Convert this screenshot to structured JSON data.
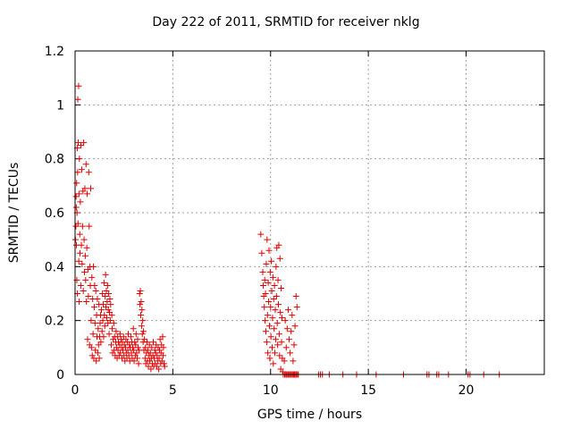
{
  "chart_data": {
    "type": "scatter",
    "title": "Day 222 of 2011, SRMTID for receiver nklg",
    "xlabel": "GPS time / hours",
    "ylabel": "SRMTID / TECUs",
    "xlim": [
      0,
      24
    ],
    "ylim": [
      0,
      1.2
    ],
    "x_ticks": [
      0,
      5,
      10,
      15,
      20
    ],
    "x_tick_labels": [
      "0",
      "5",
      "10",
      "15",
      "20"
    ],
    "y_ticks": [
      0,
      0.2,
      0.4,
      0.6,
      0.8,
      1.0,
      1.2
    ],
    "y_tick_labels": [
      "0",
      "0.2",
      "0.4",
      "0.6",
      "0.8",
      "1",
      "1.2"
    ],
    "grid": true,
    "legend": "none",
    "marker": "plus",
    "color": "#e00000",
    "series": [
      {
        "points": [
          [
            0.02,
            0.5
          ],
          [
            0.04,
            0.55
          ],
          [
            0.05,
            0.66
          ],
          [
            0.06,
            0.62
          ],
          [
            0.07,
            0.48
          ],
          [
            0.08,
            0.71
          ],
          [
            0.09,
            0.35
          ],
          [
            0.1,
            0.6
          ],
          [
            0.11,
            0.84
          ],
          [
            0.12,
            0.3
          ],
          [
            0.13,
            0.75
          ],
          [
            0.14,
            1.02
          ],
          [
            0.15,
            0.56
          ],
          [
            0.16,
            0.86
          ],
          [
            0.18,
            1.07
          ],
          [
            0.19,
            0.42
          ],
          [
            0.2,
            0.67
          ],
          [
            0.21,
            0.27
          ],
          [
            0.22,
            0.8
          ],
          [
            0.24,
            0.52
          ],
          [
            0.25,
            0.45
          ],
          [
            0.27,
            0.64
          ],
          [
            0.29,
            0.33
          ],
          [
            0.3,
            0.85
          ],
          [
            0.32,
            0.48
          ],
          [
            0.34,
            0.76
          ],
          [
            0.36,
            0.41
          ],
          [
            0.38,
            0.55
          ],
          [
            0.4,
            0.68
          ],
          [
            0.42,
            0.31
          ],
          [
            0.44,
            0.86
          ],
          [
            0.46,
            0.5
          ],
          [
            0.48,
            0.38
          ],
          [
            0.5,
            0.69
          ],
          [
            0.52,
            0.44
          ],
          [
            0.54,
            0.35
          ],
          [
            0.56,
            0.78
          ],
          [
            0.58,
            0.27
          ],
          [
            0.6,
            0.47
          ],
          [
            0.62,
            0.67
          ],
          [
            0.64,
            0.13
          ],
          [
            0.66,
            0.39
          ],
          [
            0.68,
            0.29
          ],
          [
            0.7,
            0.75
          ],
          [
            0.72,
            0.55
          ],
          [
            0.74,
            0.11
          ],
          [
            0.76,
            0.4
          ],
          [
            0.78,
            0.33
          ],
          [
            0.8,
            0.69
          ],
          [
            0.82,
            0.2
          ],
          [
            0.84,
            0.1
          ],
          [
            0.86,
            0.36
          ],
          [
            0.88,
            0.07
          ],
          [
            0.9,
            0.28
          ],
          [
            0.92,
            0.15
          ],
          [
            0.94,
            0.4
          ],
          [
            0.96,
            0.06
          ],
          [
            0.98,
            0.25
          ],
          [
            1.0,
            0.33
          ],
          [
            1.02,
            0.19
          ],
          [
            1.04,
            0.09
          ],
          [
            1.06,
            0.31
          ],
          [
            1.08,
            0.05
          ],
          [
            1.1,
            0.22
          ],
          [
            1.12,
            0.14
          ],
          [
            1.14,
            0.28
          ],
          [
            1.16,
            0.08
          ],
          [
            1.18,
            0.17
          ],
          [
            1.2,
            0.11
          ],
          [
            1.22,
            0.26
          ],
          [
            1.24,
            0.06
          ],
          [
            1.26,
            0.14
          ],
          [
            1.28,
            0.19
          ],
          [
            1.3,
            0.22
          ],
          [
            1.32,
            0.12
          ],
          [
            1.35,
            0.24
          ],
          [
            1.38,
            0.16
          ],
          [
            1.4,
            0.3
          ],
          [
            1.42,
            0.2
          ],
          [
            1.44,
            0.26
          ],
          [
            1.46,
            0.14
          ],
          [
            1.48,
            0.34
          ],
          [
            1.5,
            0.22
          ],
          [
            1.52,
            0.18
          ],
          [
            1.54,
            0.29
          ],
          [
            1.56,
            0.37
          ],
          [
            1.58,
            0.25
          ],
          [
            1.6,
            0.31
          ],
          [
            1.62,
            0.21
          ],
          [
            1.64,
            0.27
          ],
          [
            1.66,
            0.33
          ],
          [
            1.68,
            0.19
          ],
          [
            1.7,
            0.24
          ],
          [
            1.72,
            0.3
          ],
          [
            1.74,
            0.15
          ],
          [
            1.76,
            0.23
          ],
          [
            1.78,
            0.28
          ],
          [
            1.8,
            0.2
          ],
          [
            1.82,
            0.26
          ],
          [
            1.85,
            0.11
          ],
          [
            1.88,
            0.22
          ],
          [
            1.9,
            0.17
          ],
          [
            1.92,
            0.08
          ],
          [
            1.95,
            0.13
          ],
          [
            1.98,
            0.19
          ],
          [
            2.0,
            0.09
          ],
          [
            2.02,
            0.14
          ],
          [
            2.05,
            0.07
          ],
          [
            2.08,
            0.12
          ],
          [
            2.1,
            0.16
          ],
          [
            2.12,
            0.1
          ],
          [
            2.15,
            0.06
          ],
          [
            2.18,
            0.14
          ],
          [
            2.2,
            0.09
          ],
          [
            2.22,
            0.12
          ],
          [
            2.25,
            0.07
          ],
          [
            2.28,
            0.11
          ],
          [
            2.3,
            0.15
          ],
          [
            2.32,
            0.08
          ],
          [
            2.35,
            0.13
          ],
          [
            2.38,
            0.1
          ],
          [
            2.4,
            0.06
          ],
          [
            2.42,
            0.12
          ],
          [
            2.45,
            0.09
          ],
          [
            2.48,
            0.14
          ],
          [
            2.5,
            0.07
          ],
          [
            2.52,
            0.11
          ],
          [
            2.55,
            0.05
          ],
          [
            2.58,
            0.1
          ],
          [
            2.6,
            0.13
          ],
          [
            2.62,
            0.08
          ],
          [
            2.65,
            0.06
          ],
          [
            2.68,
            0.12
          ],
          [
            2.7,
            0.09
          ],
          [
            2.72,
            0.15
          ],
          [
            2.75,
            0.07
          ],
          [
            2.78,
            0.11
          ],
          [
            2.8,
            0.05
          ],
          [
            2.82,
            0.1
          ],
          [
            2.85,
            0.14
          ],
          [
            2.88,
            0.08
          ],
          [
            2.9,
            0.12
          ],
          [
            2.92,
            0.06
          ],
          [
            2.95,
            0.1
          ],
          [
            2.98,
            0.17
          ],
          [
            3.0,
            0.09
          ],
          [
            3.02,
            0.05
          ],
          [
            3.05,
            0.12
          ],
          [
            3.08,
            0.07
          ],
          [
            3.1,
            0.11
          ],
          [
            3.12,
            0.15
          ],
          [
            3.15,
            0.08
          ],
          [
            3.18,
            0.06
          ],
          [
            3.2,
            0.13
          ],
          [
            3.22,
            0.1
          ],
          [
            3.25,
            0.04
          ],
          [
            3.28,
            0.09
          ],
          [
            3.3,
            0.3
          ],
          [
            3.32,
            0.26
          ],
          [
            3.34,
            0.31
          ],
          [
            3.36,
            0.22
          ],
          [
            3.38,
            0.27
          ],
          [
            3.4,
            0.18
          ],
          [
            3.42,
            0.24
          ],
          [
            3.44,
            0.15
          ],
          [
            3.46,
            0.2
          ],
          [
            3.48,
            0.12
          ],
          [
            3.5,
            0.16
          ],
          [
            3.52,
            0.09
          ],
          [
            3.55,
            0.13
          ],
          [
            3.58,
            0.06
          ],
          [
            3.6,
            0.1
          ],
          [
            3.62,
            0.04
          ],
          [
            3.65,
            0.08
          ],
          [
            3.68,
            0.12
          ],
          [
            3.7,
            0.05
          ],
          [
            3.72,
            0.09
          ],
          [
            3.75,
            0.03
          ],
          [
            3.78,
            0.07
          ],
          [
            3.8,
            0.11
          ],
          [
            3.82,
            0.05
          ],
          [
            3.85,
            0.08
          ],
          [
            3.88,
            0.02
          ],
          [
            3.9,
            0.06
          ],
          [
            3.92,
            0.1
          ],
          [
            3.95,
            0.04
          ],
          [
            3.98,
            0.07
          ],
          [
            4.0,
            0.12
          ],
          [
            4.02,
            0.03
          ],
          [
            4.05,
            0.06
          ],
          [
            4.08,
            0.09
          ],
          [
            4.1,
            0.04
          ],
          [
            4.12,
            0.08
          ],
          [
            4.15,
            0.11
          ],
          [
            4.18,
            0.03
          ],
          [
            4.2,
            0.07
          ],
          [
            4.22,
            0.05
          ],
          [
            4.25,
            0.1
          ],
          [
            4.28,
            0.02
          ],
          [
            4.3,
            0.06
          ],
          [
            4.32,
            0.09
          ],
          [
            4.35,
            0.13
          ],
          [
            4.38,
            0.04
          ],
          [
            4.4,
            0.08
          ],
          [
            4.42,
            0.11
          ],
          [
            4.45,
            0.05
          ],
          [
            4.48,
            0.14
          ],
          [
            4.5,
            0.07
          ],
          [
            4.52,
            0.1
          ],
          [
            4.55,
            0.04
          ],
          [
            4.58,
            0.03
          ],
          [
            9.5,
            0.52
          ],
          [
            9.55,
            0.45
          ],
          [
            9.6,
            0.38
          ],
          [
            9.62,
            0.33
          ],
          [
            9.65,
            0.29
          ],
          [
            9.68,
            0.25
          ],
          [
            9.7,
            0.35
          ],
          [
            9.72,
            0.2
          ],
          [
            9.74,
            0.3
          ],
          [
            9.76,
            0.16
          ],
          [
            9.78,
            0.41
          ],
          [
            9.8,
            0.12
          ],
          [
            9.82,
            0.5
          ],
          [
            9.84,
            0.22
          ],
          [
            9.86,
            0.08
          ],
          [
            9.88,
            0.34
          ],
          [
            9.9,
            0.27
          ],
          [
            9.92,
            0.46
          ],
          [
            9.94,
            0.18
          ],
          [
            9.96,
            0.06
          ],
          [
            9.98,
            0.38
          ],
          [
            10.0,
            0.25
          ],
          [
            10.02,
            0.14
          ],
          [
            10.04,
            0.42
          ],
          [
            10.06,
            0.31
          ],
          [
            10.08,
            0.1
          ],
          [
            10.1,
            0.21
          ],
          [
            10.12,
            0.36
          ],
          [
            10.14,
            0.04
          ],
          [
            10.16,
            0.28
          ],
          [
            10.18,
            0.17
          ],
          [
            10.2,
            0.33
          ],
          [
            10.22,
            0.08
          ],
          [
            10.24,
            0.24
          ],
          [
            10.26,
            0.13
          ],
          [
            10.28,
            0.4
          ],
          [
            10.3,
            0.29
          ],
          [
            10.32,
            0.47
          ],
          [
            10.34,
            0.19
          ],
          [
            10.36,
            0.11
          ],
          [
            10.38,
            0.35
          ],
          [
            10.4,
            0.26
          ],
          [
            10.42,
            0.48
          ],
          [
            10.44,
            0.15
          ],
          [
            10.46,
            0.07
          ],
          [
            10.48,
            0.43
          ],
          [
            10.5,
            0.23
          ],
          [
            10.52,
            0.02
          ],
          [
            10.54,
            0.32
          ],
          [
            10.56,
            0.12
          ],
          [
            10.58,
            0.21
          ],
          [
            10.6,
            0.06
          ],
          [
            10.62,
            0.01
          ],
          [
            10.7,
            0.05
          ],
          [
            10.75,
            0.2
          ],
          [
            10.8,
            0.1
          ],
          [
            10.85,
            0.17
          ],
          [
            10.9,
            0.24
          ],
          [
            10.95,
            0.13
          ],
          [
            11.0,
            0.08
          ],
          [
            11.05,
            0.16
          ],
          [
            11.1,
            0.22
          ],
          [
            11.15,
            0.05
          ],
          [
            11.2,
            0.11
          ],
          [
            11.25,
            0.18
          ],
          [
            11.3,
            0.29
          ],
          [
            11.35,
            0.25
          ],
          [
            10.65,
            0.0
          ],
          [
            10.72,
            0.0
          ],
          [
            10.78,
            0.0
          ],
          [
            10.82,
            0.0
          ],
          [
            10.88,
            0.0
          ],
          [
            10.92,
            0.0
          ],
          [
            10.98,
            0.0
          ],
          [
            11.02,
            0.0
          ],
          [
            11.08,
            0.0
          ],
          [
            11.12,
            0.0
          ],
          [
            11.18,
            0.0
          ],
          [
            11.22,
            0.0
          ],
          [
            11.28,
            0.0
          ],
          [
            11.32,
            0.0
          ],
          [
            11.38,
            0.0
          ],
          [
            11.42,
            0.0
          ],
          [
            12.45,
            0.0
          ],
          [
            12.55,
            0.0
          ],
          [
            12.65,
            0.0
          ],
          [
            13.0,
            0.0
          ],
          [
            13.7,
            0.0
          ],
          [
            14.4,
            0.0
          ],
          [
            15.4,
            0.0
          ],
          [
            16.8,
            0.0
          ],
          [
            18.0,
            0.0
          ],
          [
            18.1,
            0.0
          ],
          [
            18.5,
            0.0
          ],
          [
            18.6,
            0.0
          ],
          [
            19.1,
            0.0
          ],
          [
            20.1,
            0.0
          ],
          [
            20.2,
            0.0
          ],
          [
            20.9,
            0.0
          ],
          [
            21.7,
            0.0
          ]
        ]
      }
    ]
  }
}
